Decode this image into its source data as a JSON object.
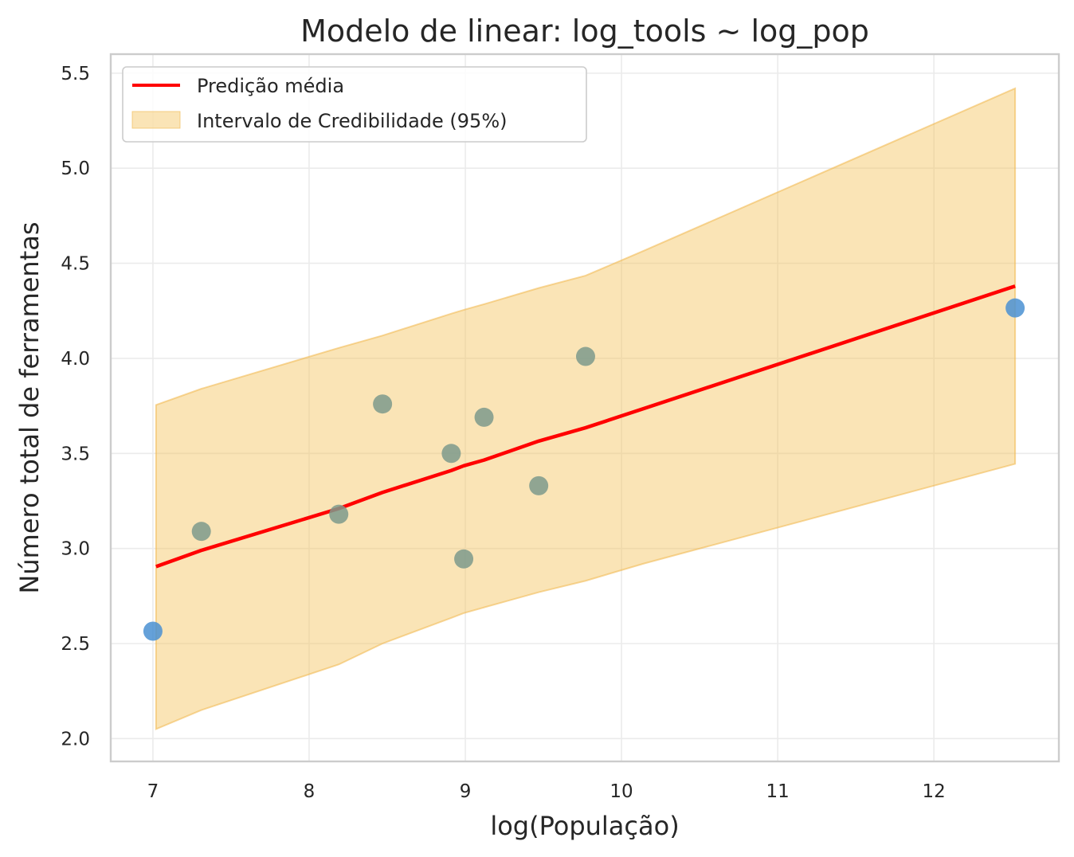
{
  "chart_data": {
    "type": "scatter",
    "title": "Modelo de linear: log_tools ~ log_pop",
    "xlabel": "log(População)",
    "ylabel": "Número total de ferramentas",
    "xlim": [
      6.73,
      12.8
    ],
    "ylim": [
      1.88,
      5.6
    ],
    "xticks": [
      7,
      8,
      9,
      10,
      11,
      12
    ],
    "yticks": [
      2.0,
      2.5,
      3.0,
      3.5,
      4.0,
      4.5,
      5.0,
      5.5
    ],
    "xtick_labels": [
      "7",
      "8",
      "9",
      "10",
      "11",
      "12"
    ],
    "ytick_labels": [
      "2.0",
      "2.5",
      "3.0",
      "3.5",
      "4.0",
      "4.5",
      "5.0",
      "5.5"
    ],
    "grid": true,
    "legend_position": "top-left",
    "legend": {
      "line_label": "Predição média",
      "band_label": "Intervalo de Credibilidade (95%)"
    },
    "colors": {
      "line": "#ff0000",
      "band_fill": "#f5c45e",
      "band_edge": "#f0b64a",
      "point_gray": "#7d9a8c",
      "point_blue": "#4a90d2"
    },
    "points": [
      {
        "x": 7.0,
        "y": 2.565,
        "color": "blue"
      },
      {
        "x": 7.31,
        "y": 3.09,
        "color": "gray"
      },
      {
        "x": 8.19,
        "y": 3.18,
        "color": "gray"
      },
      {
        "x": 8.47,
        "y": 3.76,
        "color": "gray"
      },
      {
        "x": 8.91,
        "y": 3.5,
        "color": "gray"
      },
      {
        "x": 8.99,
        "y": 2.945,
        "color": "gray"
      },
      {
        "x": 9.12,
        "y": 3.69,
        "color": "gray"
      },
      {
        "x": 9.47,
        "y": 3.33,
        "color": "gray"
      },
      {
        "x": 9.77,
        "y": 4.01,
        "color": "gray"
      },
      {
        "x": 12.52,
        "y": 4.265,
        "color": "blue"
      }
    ],
    "series": [
      {
        "name": "Predição média",
        "x": [
          7.02,
          7.31,
          8.19,
          8.47,
          8.91,
          8.99,
          9.12,
          9.47,
          9.77,
          12.52
        ],
        "y": [
          2.905,
          2.99,
          3.21,
          3.295,
          3.41,
          3.435,
          3.465,
          3.565,
          3.635,
          4.38
        ]
      }
    ],
    "band": {
      "name": "Intervalo de Credibilidade (95%)",
      "x": [
        7.02,
        7.31,
        8.19,
        8.47,
        8.91,
        8.99,
        9.12,
        9.47,
        9.77,
        10.14,
        12.52
      ],
      "lower": [
        2.05,
        2.15,
        2.39,
        2.5,
        2.635,
        2.66,
        2.69,
        2.77,
        2.83,
        2.92,
        3.445
      ],
      "upper": [
        3.755,
        3.84,
        4.055,
        4.12,
        4.235,
        4.255,
        4.285,
        4.37,
        4.435,
        4.565,
        5.42
      ]
    }
  }
}
